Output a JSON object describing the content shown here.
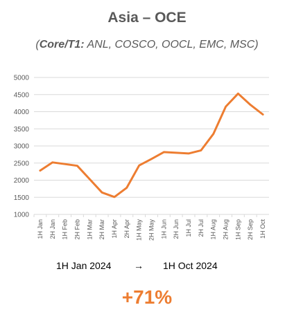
{
  "header": {
    "title": "Asia – OCE",
    "subtitle_prefix": "Core/T1:",
    "subtitle_carriers": " ANL, COSCO, OOCL, EMC, MSC"
  },
  "chart_data": {
    "type": "line",
    "title": "Asia – OCE",
    "xlabel": "",
    "ylabel": "",
    "ylim": [
      1000,
      5000
    ],
    "yticks": [
      1000,
      1500,
      2000,
      2500,
      3000,
      3500,
      4000,
      4500,
      5000
    ],
    "grid": true,
    "legend": "none",
    "categories": [
      "1H Jan",
      "2H Jan",
      "1H Feb",
      "2H Feb",
      "1H Mar",
      "2H Mar",
      "1H Apr",
      "2H Apr",
      "1H May",
      "2H May",
      "1H Jun",
      "2H Jun",
      "1H Jul",
      "2H Jul",
      "1H Aug",
      "2H Aug",
      "1H Sep",
      "2H Sep",
      "1H Oct"
    ],
    "series": [
      {
        "values": [
          2280,
          2520,
          2470,
          2420,
          2030,
          1640,
          1510,
          1780,
          2430,
          2620,
          2820,
          2800,
          2780,
          2870,
          3350,
          4150,
          4530,
          4200,
          3920
        ],
        "color": "#ed7d31"
      }
    ]
  },
  "footer": {
    "from": "1H Jan 2024",
    "arrow": "→",
    "to": "1H Oct 2024",
    "change": "+71%",
    "change_color": "#ed7d31"
  }
}
